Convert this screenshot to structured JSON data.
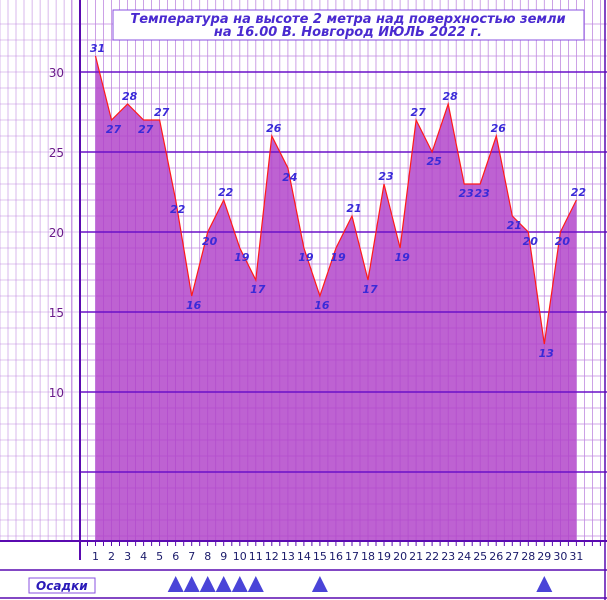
{
  "chart_data": {
    "type": "area",
    "title_line1": "Температура  на  высоте  2 метра  над  поверхностью  земли",
    "title_line2": "на  16.00  В. Новгород  ИЮЛЬ  2022 г.",
    "x": [
      1,
      2,
      3,
      4,
      5,
      6,
      7,
      8,
      9,
      10,
      11,
      12,
      13,
      14,
      15,
      16,
      17,
      18,
      19,
      20,
      21,
      22,
      23,
      24,
      25,
      26,
      27,
      28,
      29,
      30,
      31
    ],
    "values": [
      31,
      27,
      28,
      27,
      27,
      22,
      16,
      20,
      22,
      19,
      17,
      26,
      24,
      19,
      16,
      19,
      21,
      17,
      23,
      19,
      27,
      25,
      28,
      23,
      23,
      26,
      21,
      20,
      13,
      20,
      22
    ],
    "xlim": [
      0,
      32
    ],
    "ylim": [
      0,
      33
    ],
    "yticks": [
      10,
      15,
      20,
      25,
      30
    ],
    "grid": true,
    "colors": {
      "fill": "#b040c8",
      "line": "#ff1a1a",
      "minor_grid": "#c08ae0",
      "major_grid": "#6a10c8",
      "axis": "#5a0ab0",
      "precip_marker": "#4a44d8"
    },
    "precipitation": {
      "label": "Осадки",
      "days": [
        6,
        7,
        8,
        9,
        10,
        11,
        15,
        29
      ]
    }
  }
}
